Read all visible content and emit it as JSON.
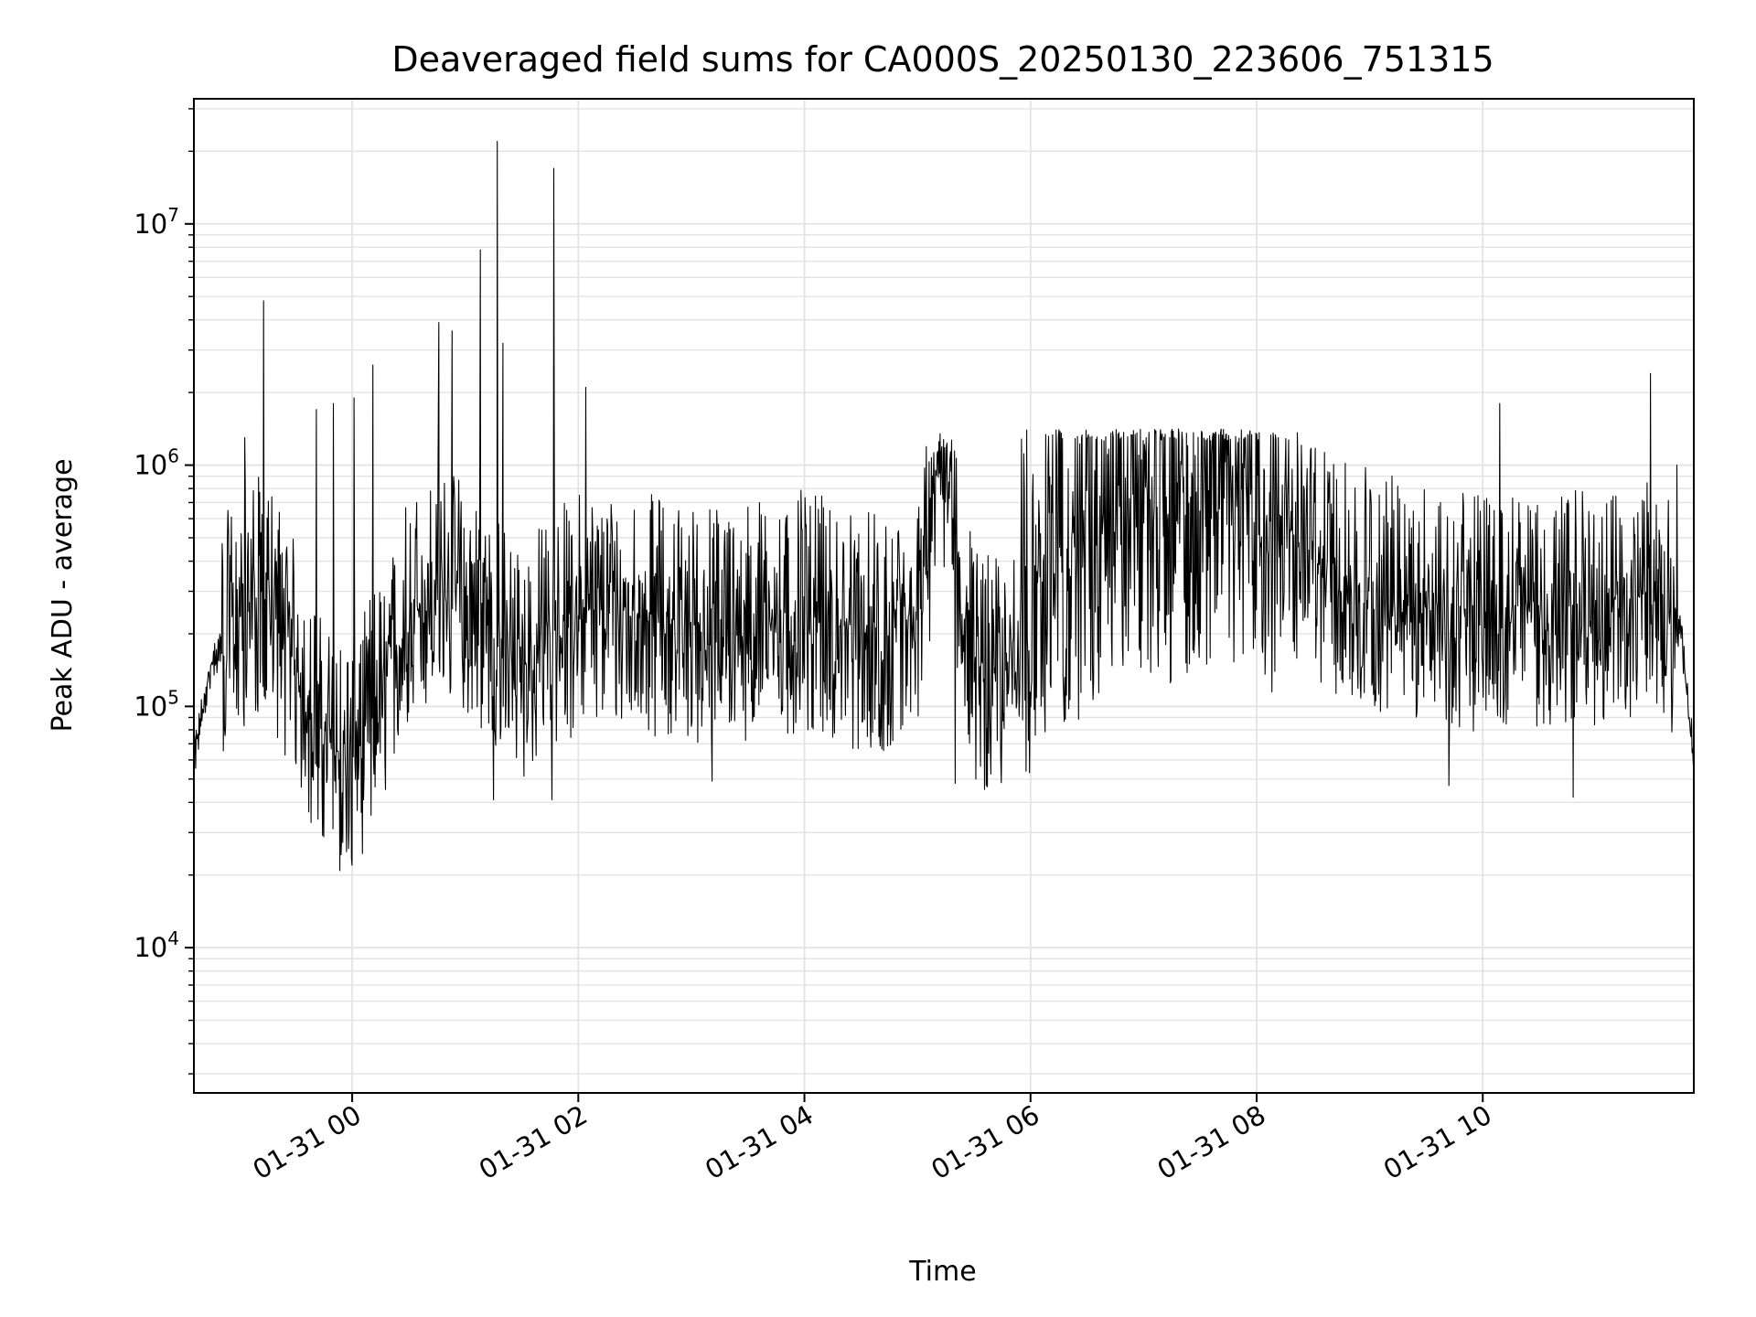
{
  "chart_data": {
    "type": "line",
    "title": "Deaveraged field sums for CA000S_20250130_223606_751315",
    "xlabel": "Time",
    "ylabel": "Peak ADU - average",
    "yscale": "log",
    "ylim": [
      2500,
      33000000
    ],
    "xlim": [
      "2025-01-30 22:36",
      "2025-01-31 11:52"
    ],
    "grid": true,
    "line_color": "#000000",
    "x_ticks": [
      {
        "label": "01-31 00",
        "t": "2025-01-31 00:00"
      },
      {
        "label": "01-31 02",
        "t": "2025-01-31 02:00"
      },
      {
        "label": "01-31 04",
        "t": "2025-01-31 04:00"
      },
      {
        "label": "01-31 06",
        "t": "2025-01-31 06:00"
      },
      {
        "label": "01-31 08",
        "t": "2025-01-31 08:00"
      },
      {
        "label": "01-31 10",
        "t": "2025-01-31 10:00"
      }
    ],
    "y_ticks": [
      {
        "base": "10",
        "exp": "4",
        "value": 10000
      },
      {
        "base": "10",
        "exp": "5",
        "value": 100000
      },
      {
        "base": "10",
        "exp": "6",
        "value": 1000000
      },
      {
        "base": "10",
        "exp": "7",
        "value": 10000000
      }
    ],
    "series": [
      {
        "x": [
          "2025-01-30 22:36",
          "2025-01-30 22:45",
          "2025-01-30 23:00",
          "2025-01-30 23:15",
          "2025-01-30 23:30",
          "2025-01-30 23:45",
          "2025-01-31 00:00",
          "2025-01-31 00:15",
          "2025-01-31 00:30",
          "2025-01-31 00:45",
          "2025-01-31 01:00",
          "2025-01-31 01:15",
          "2025-01-31 01:30",
          "2025-01-31 01:45",
          "2025-01-31 02:00",
          "2025-01-31 02:30",
          "2025-01-31 03:00",
          "2025-01-31 03:30",
          "2025-01-31 04:00",
          "2025-01-31 04:30",
          "2025-01-31 05:00",
          "2025-01-31 05:12",
          "2025-01-31 05:30",
          "2025-01-31 05:45",
          "2025-01-31 06:00",
          "2025-01-31 06:30",
          "2025-01-31 07:00",
          "2025-01-31 07:30",
          "2025-01-31 08:00",
          "2025-01-31 08:30",
          "2025-01-31 09:00",
          "2025-01-31 09:30",
          "2025-01-31 10:00",
          "2025-01-31 10:30",
          "2025-01-31 11:00",
          "2025-01-31 11:30",
          "2025-01-31 11:45",
          "2025-01-31 11:52"
        ],
        "y": [
          60000,
          150000,
          250000,
          300000,
          150000,
          70000,
          60000,
          120000,
          250000,
          300000,
          300000,
          200000,
          150000,
          200000,
          250000,
          250000,
          220000,
          230000,
          250000,
          200000,
          220000,
          1300000,
          150000,
          130000,
          350000,
          600000,
          800000,
          800000,
          850000,
          400000,
          300000,
          260000,
          250000,
          260000,
          260000,
          300000,
          200000,
          60000
        ]
      }
    ],
    "spikes": [
      {
        "t": "2025-01-30 23:13",
        "y": 4800000
      },
      {
        "t": "2025-01-30 23:03",
        "y": 1300000
      },
      {
        "t": "2025-01-30 23:41",
        "y": 1700000
      },
      {
        "t": "2025-01-30 23:50",
        "y": 1800000
      },
      {
        "t": "2025-01-31 00:01",
        "y": 1900000
      },
      {
        "t": "2025-01-31 00:11",
        "y": 2600000
      },
      {
        "t": "2025-01-31 00:46",
        "y": 3900000
      },
      {
        "t": "2025-01-31 00:53",
        "y": 3600000
      },
      {
        "t": "2025-01-31 01:08",
        "y": 7800000
      },
      {
        "t": "2025-01-31 01:17",
        "y": 22000000
      },
      {
        "t": "2025-01-31 01:20",
        "y": 3200000
      },
      {
        "t": "2025-01-31 01:47",
        "y": 17000000
      },
      {
        "t": "2025-01-31 02:04",
        "y": 2100000
      },
      {
        "t": "2025-01-31 05:12",
        "y": 1350000
      },
      {
        "t": "2025-01-31 10:09",
        "y": 1800000
      },
      {
        "t": "2025-01-31 11:29",
        "y": 2400000
      },
      {
        "t": "2025-01-31 11:43",
        "y": 1000000
      }
    ],
    "dips": [
      {
        "t": "2025-01-30 23:57",
        "y": 25000
      },
      {
        "t": "2025-01-31 01:15",
        "y": 41000
      },
      {
        "t": "2025-01-31 01:46",
        "y": 41000
      },
      {
        "t": "2025-01-31 03:11",
        "y": 49000
      },
      {
        "t": "2025-01-31 05:20",
        "y": 48000
      },
      {
        "t": "2025-01-31 09:42",
        "y": 47000
      },
      {
        "t": "2025-01-31 10:48",
        "y": 42000
      }
    ]
  }
}
